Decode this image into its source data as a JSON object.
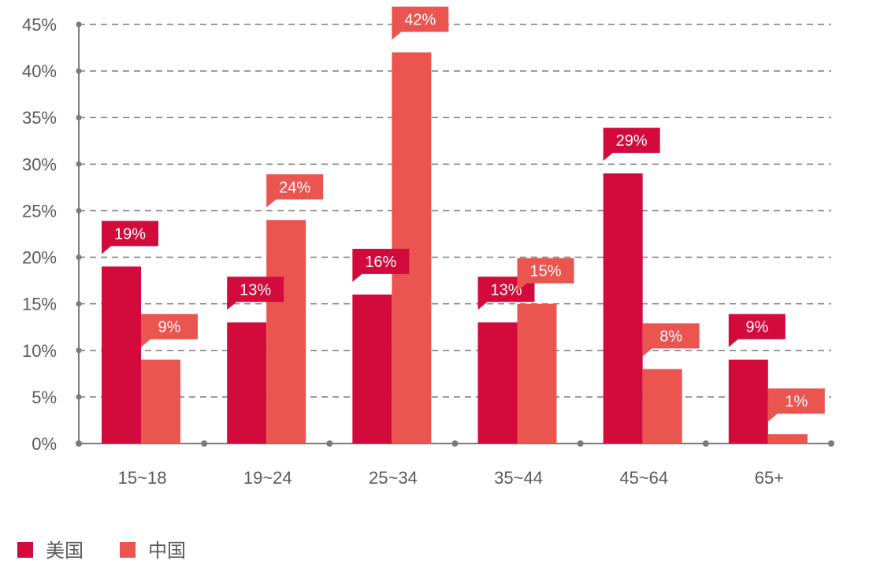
{
  "chart_data": {
    "type": "bar",
    "categories": [
      "15~18",
      "19~24",
      "25~34",
      "35~44",
      "45~64",
      "65+"
    ],
    "series": [
      {
        "name": "美国",
        "values": [
          19,
          13,
          16,
          13,
          29,
          9
        ],
        "labels": [
          "19%",
          "13%",
          "16%",
          "13%",
          "29%",
          "9%"
        ],
        "color": "#d20b3c"
      },
      {
        "name": "中国",
        "values": [
          9,
          24,
          42,
          15,
          8,
          1
        ],
        "labels": [
          "9%",
          "24%",
          "42%",
          "15%",
          "8%",
          "1%"
        ],
        "color": "#ea5550"
      }
    ],
    "ylim": [
      0,
      45
    ],
    "y_ticks": [
      "0%",
      "5%",
      "10%",
      "15%",
      "20%",
      "25%",
      "30%",
      "35%",
      "40%",
      "45%"
    ],
    "grid": true,
    "legend": "bottom-left"
  }
}
